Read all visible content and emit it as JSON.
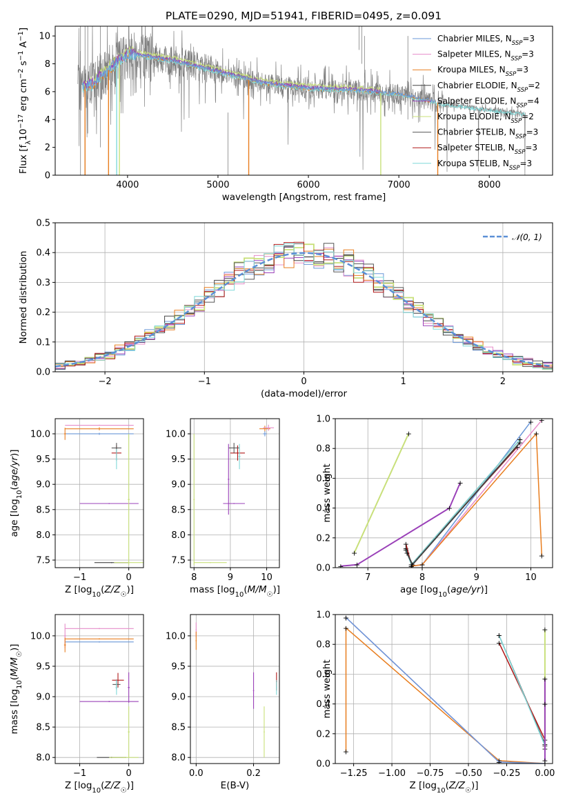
{
  "title": "PLATE=0290, MJD=51941, FIBERID=0495, z=0.091",
  "colors": {
    "Chabrier MILES": "#6a97d8",
    "Salpeter MILES": "#e68cc9",
    "Kroupa MILES": "#e87d1e",
    "Chabrier ELODIE": "#444444",
    "Salpeter ELODIE": "#9a40b8",
    "Kroupa ELODIE": "#c8e07a",
    "Chabrier STELIB": "#555555",
    "Salpeter STELIB": "#b01818",
    "Kroupa STELIB": "#7fd8d8",
    "data": "#808080"
  },
  "chart_data": [
    {
      "id": "spectrum",
      "type": "line",
      "title": "PLATE=0290, MJD=51941, FIBERID=0495, z=0.091",
      "xlabel": "wavelength [Angstrom, rest frame]",
      "ylabel": "Flux [f_λ10^-17 erg cm^-2 s^-1 A^-1]",
      "xlim": [
        3200,
        8700
      ],
      "ylim": [
        0,
        10.7
      ],
      "xticks": [
        "4000",
        "5000",
        "6000",
        "7000",
        "8000"
      ],
      "yticks": [
        "0",
        "2",
        "4",
        "6",
        "8",
        "10"
      ],
      "continuum": {
        "x": [
          3450,
          3600,
          3800,
          4000,
          4200,
          4500,
          5000,
          5500,
          6000,
          6500,
          7000,
          7500,
          8000,
          8400
        ],
        "y": [
          6.2,
          6.5,
          7.6,
          8.7,
          8.5,
          8.2,
          7.4,
          6.6,
          6.2,
          6.1,
          5.8,
          5.1,
          4.7,
          4.4
        ]
      },
      "legend": [
        {
          "name": "Chabrier MILES",
          "suffix": "3"
        },
        {
          "name": "Salpeter MILES",
          "suffix": "3"
        },
        {
          "name": "Kroupa MILES",
          "suffix": "3"
        },
        {
          "name": "Chabrier ELODIE",
          "suffix": "2"
        },
        {
          "name": "Salpeter ELODIE",
          "suffix": "4"
        },
        {
          "name": "Kroupa ELODIE",
          "suffix": "2"
        },
        {
          "name": "Chabrier STELIB",
          "suffix": "3"
        },
        {
          "name": "Salpeter STELIB",
          "suffix": "3"
        },
        {
          "name": "Kroupa STELIB",
          "suffix": "3"
        }
      ]
    },
    {
      "id": "residuals",
      "type": "step",
      "xlabel": "(data-model)/error",
      "ylabel": "Normed distribution",
      "xlim": [
        -2.5,
        2.5
      ],
      "ylim": [
        0,
        0.5
      ],
      "xticks": [
        "−2",
        "−1",
        "0",
        "1",
        "2"
      ],
      "yticks": [
        "0.0",
        "0.1",
        "0.2",
        "0.3",
        "0.4",
        "0.5"
      ],
      "legend": "𝒩(0, 1)",
      "bin_width": 0.1
    },
    {
      "id": "age_vs_Z",
      "type": "scatter",
      "xlabel": "Z [log10(Z/Z☉)]",
      "ylabel": "age [log10(age/yr)]",
      "xlim": [
        -1.5,
        0.3
      ],
      "ylim": [
        7.35,
        10.3
      ],
      "xticks": [
        "−1",
        "0"
      ],
      "yticks": [
        "7.5",
        "8.0",
        "8.5",
        "9.0",
        "9.5",
        "10.0"
      ]
    },
    {
      "id": "age_vs_mass",
      "type": "scatter",
      "xlabel": "mass [log10(M/M☉)]",
      "xlim": [
        7.9,
        10.35
      ],
      "ylim": [
        7.35,
        10.3
      ],
      "xticks": [
        "8",
        "9",
        "10"
      ],
      "yticks": [
        "7.5",
        "8.0",
        "8.5",
        "9.0",
        "9.5",
        "10.0"
      ]
    },
    {
      "id": "weight_vs_age",
      "type": "line",
      "xlabel": "age [log10(age/yr)]",
      "ylabel": "mass weight",
      "xlim": [
        6.4,
        10.4
      ],
      "ylim": [
        0,
        1
      ],
      "xticks": [
        "7",
        "8",
        "9",
        "10"
      ],
      "yticks": [
        "0.0",
        "0.2",
        "0.4",
        "0.6",
        "0.8",
        "1.0"
      ],
      "series": [
        {
          "name": "Kroupa ELODIE",
          "x": [
            6.75,
            7.75
          ],
          "y": [
            0.1,
            0.9
          ]
        },
        {
          "name": "Salpeter ELODIE",
          "x": [
            6.5,
            6.8,
            8.5,
            8.7
          ],
          "y": [
            0.01,
            0.02,
            0.4,
            0.57
          ]
        },
        {
          "name": "Chabrier MILES",
          "x": [
            7.8,
            8.0,
            10.0
          ],
          "y": [
            0.01,
            0.02,
            0.98
          ]
        },
        {
          "name": "Salpeter MILES",
          "x": [
            7.8,
            8.0,
            10.2
          ],
          "y": [
            0.01,
            0.02,
            0.99
          ]
        },
        {
          "name": "Kroupa MILES",
          "x": [
            7.8,
            8.0,
            10.1,
            10.2
          ],
          "y": [
            0.01,
            0.02,
            0.9,
            0.08
          ]
        },
        {
          "name": "Chabrier STELIB",
          "x": [
            7.7,
            7.8,
            9.8
          ],
          "y": [
            0.13,
            0.02,
            0.86
          ]
        },
        {
          "name": "Salpeter STELIB",
          "x": [
            7.7,
            7.8,
            9.75
          ],
          "y": [
            0.16,
            0.02,
            0.81
          ]
        },
        {
          "name": "Kroupa STELIB",
          "x": [
            7.7,
            7.8,
            9.8
          ],
          "y": [
            0.12,
            0.02,
            0.86
          ]
        },
        {
          "name": "Chabrier ELODIE",
          "x": [
            7.72,
            7.82,
            9.8
          ],
          "y": [
            0.1,
            0.02,
            0.84
          ]
        }
      ]
    },
    {
      "id": "mass_vs_Z",
      "type": "scatter",
      "xlabel": "Z [log10(Z/Z☉)]",
      "ylabel": "mass [log10(M/M☉)]",
      "xlim": [
        -1.5,
        0.3
      ],
      "ylim": [
        7.9,
        10.35
      ],
      "xticks": [
        "−1",
        "0"
      ],
      "yticks": [
        "8.0",
        "8.5",
        "9.0",
        "9.5",
        "10.0"
      ]
    },
    {
      "id": "mass_vs_EBV",
      "type": "scatter",
      "xlabel": "E(B-V)",
      "xlim": [
        -0.02,
        0.29
      ],
      "ylim": [
        7.9,
        10.35
      ],
      "xticks": [
        "0.0",
        "0.2"
      ],
      "yticks": [
        "8.0",
        "8.5",
        "9.0",
        "9.5",
        "10.0"
      ]
    },
    {
      "id": "weight_vs_Z",
      "type": "line",
      "xlabel": "Z [log10(Z/Z☉)]",
      "ylabel": "mass weight",
      "xlim": [
        -1.37,
        0.05
      ],
      "ylim": [
        0,
        1
      ],
      "xticks": [
        "−1.25",
        "−1.00",
        "−0.75",
        "−0.50",
        "−0.25",
        "0.00"
      ],
      "yticks": [
        "0.0",
        "0.2",
        "0.4",
        "0.6",
        "0.8",
        "1.0"
      ],
      "series": [
        {
          "name": "Kroupa MILES",
          "x": [
            -1.3,
            -1.3,
            -0.3,
            0.0
          ],
          "y": [
            0.08,
            0.91,
            0.02,
            0.0
          ]
        },
        {
          "name": "Salpeter MILES",
          "x": [
            -1.3,
            -0.3,
            0.0
          ],
          "y": [
            0.98,
            0.01,
            0.0
          ]
        },
        {
          "name": "Chabrier MILES",
          "x": [
            -1.3,
            -0.3,
            0.0
          ],
          "y": [
            0.98,
            0.01,
            0.0
          ]
        },
        {
          "name": "Chabrier STELIB",
          "x": [
            -0.3,
            0.0
          ],
          "y": [
            0.86,
            0.13
          ]
        },
        {
          "name": "Salpeter STELIB",
          "x": [
            -0.3,
            0.0
          ],
          "y": [
            0.81,
            0.16
          ]
        },
        {
          "name": "Kroupa STELIB",
          "x": [
            -0.3,
            0.0
          ],
          "y": [
            0.86,
            0.12
          ]
        },
        {
          "name": "Kroupa ELODIE",
          "x": [
            0.0,
            0.0
          ],
          "y": [
            0.1,
            0.9
          ]
        },
        {
          "name": "Salpeter ELODIE",
          "x": [
            0.0,
            0.0,
            0.0
          ],
          "y": [
            0.02,
            0.4,
            0.57
          ]
        }
      ]
    }
  ]
}
